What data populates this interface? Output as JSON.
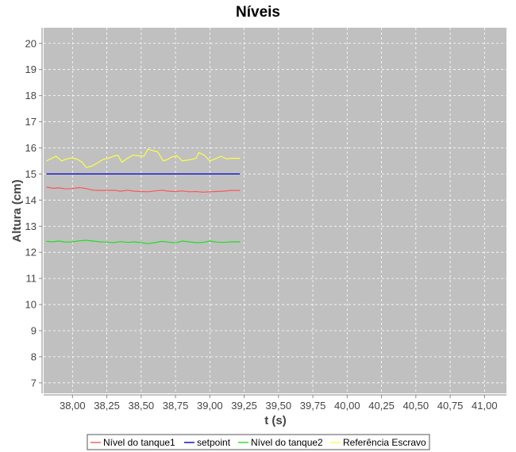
{
  "chart_data": {
    "type": "line",
    "title": "Níveis",
    "xlabel": "t (s)",
    "ylabel": "Altura (cm)",
    "xlim": [
      37.79,
      41.16
    ],
    "ylim": [
      6.6,
      20.6
    ],
    "grid": true,
    "legend_position": "bottom",
    "plot_background": "#c0c0c0",
    "x_ticks": [
      38.0,
      38.25,
      38.5,
      38.75,
      39.0,
      39.25,
      39.5,
      39.75,
      40.0,
      40.25,
      40.5,
      40.75,
      41.0
    ],
    "x_tick_labels": [
      "38,00",
      "38,25",
      "38,50",
      "38,75",
      "39,00",
      "39,25",
      "39,50",
      "39,75",
      "40,00",
      "40,25",
      "40,50",
      "40,75",
      "41,00"
    ],
    "y_ticks": [
      7,
      8,
      9,
      10,
      11,
      12,
      13,
      14,
      15,
      16,
      17,
      18,
      19,
      20
    ],
    "y_tick_labels": [
      "7",
      "8",
      "9",
      "10",
      "11",
      "12",
      "13",
      "14",
      "15",
      "16",
      "17",
      "18",
      "19",
      "20"
    ],
    "series": [
      {
        "name": "Nível do tanque1",
        "color": "#ff5555",
        "x": [
          37.81,
          37.86,
          37.9,
          37.95,
          38.0,
          38.05,
          38.1,
          38.15,
          38.2,
          38.25,
          38.3,
          38.35,
          38.4,
          38.45,
          38.5,
          38.55,
          38.6,
          38.65,
          38.7,
          38.75,
          38.8,
          38.85,
          38.9,
          38.95,
          39.0,
          39.05,
          39.1,
          39.15,
          39.22
        ],
        "y": [
          14.5,
          14.45,
          14.47,
          14.43,
          14.44,
          14.48,
          14.44,
          14.38,
          14.37,
          14.37,
          14.38,
          14.34,
          14.38,
          14.34,
          14.33,
          14.32,
          14.35,
          14.38,
          14.34,
          14.33,
          14.35,
          14.32,
          14.33,
          14.3,
          14.32,
          14.33,
          14.34,
          14.37,
          14.37
        ]
      },
      {
        "name": "setpoint",
        "color": "#0000cc",
        "x": [
          37.81,
          39.22
        ],
        "y": [
          15.0,
          15.0
        ]
      },
      {
        "name": "Nível do tanque2",
        "color": "#22dd22",
        "x": [
          37.81,
          37.86,
          37.9,
          37.95,
          38.0,
          38.05,
          38.1,
          38.15,
          38.2,
          38.25,
          38.3,
          38.35,
          38.4,
          38.45,
          38.5,
          38.55,
          38.6,
          38.65,
          38.7,
          38.75,
          38.8,
          38.85,
          38.9,
          38.95,
          39.0,
          39.05,
          39.1,
          39.15,
          39.22
        ],
        "y": [
          12.42,
          12.4,
          12.43,
          12.39,
          12.4,
          12.44,
          12.46,
          12.43,
          12.4,
          12.39,
          12.37,
          12.41,
          12.38,
          12.4,
          12.37,
          12.33,
          12.37,
          12.42,
          12.39,
          12.36,
          12.43,
          12.4,
          12.37,
          12.38,
          12.43,
          12.39,
          12.38,
          12.4,
          12.4
        ]
      },
      {
        "name": "Referência Escravo",
        "color": "#ffff44",
        "x": [
          37.81,
          37.85,
          37.88,
          37.92,
          37.96,
          38.0,
          38.04,
          38.07,
          38.1,
          38.14,
          38.18,
          38.22,
          38.26,
          38.3,
          38.33,
          38.36,
          38.4,
          38.44,
          38.48,
          38.52,
          38.55,
          38.58,
          38.62,
          38.66,
          38.69,
          38.72,
          38.76,
          38.8,
          38.82,
          38.86,
          38.9,
          38.92,
          38.96,
          39.0,
          39.04,
          39.08,
          39.12,
          39.16,
          39.22
        ],
        "y": [
          15.5,
          15.6,
          15.68,
          15.5,
          15.58,
          15.62,
          15.55,
          15.45,
          15.25,
          15.3,
          15.42,
          15.55,
          15.6,
          15.68,
          15.72,
          15.45,
          15.6,
          15.72,
          15.7,
          15.68,
          15.95,
          15.9,
          15.85,
          15.5,
          15.55,
          15.65,
          15.7,
          15.5,
          15.52,
          15.55,
          15.6,
          15.82,
          15.72,
          15.5,
          15.58,
          15.68,
          15.58,
          15.6,
          15.6
        ]
      }
    ]
  }
}
